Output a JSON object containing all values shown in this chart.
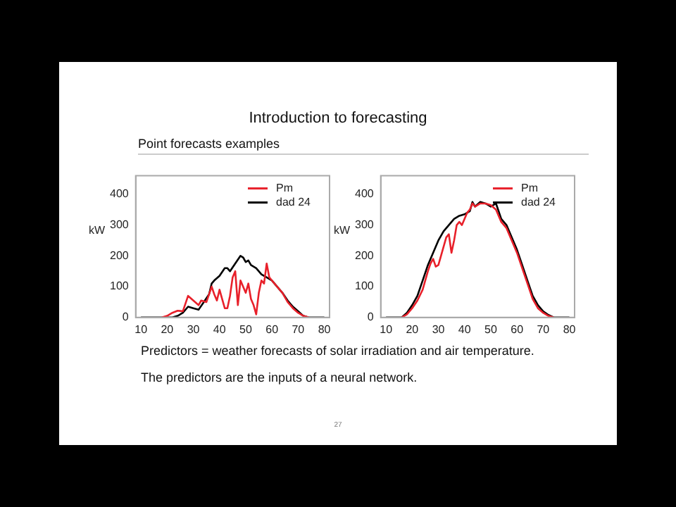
{
  "chart_data": [
    {
      "type": "line",
      "title": "Introduction to forecasting",
      "subtitle": "Point forecasts examples",
      "ylabel": "kW",
      "xlim": [
        8,
        82
      ],
      "xticks": [
        10,
        20,
        30,
        40,
        50,
        60,
        70,
        80
      ],
      "ylim": [
        0,
        460
      ],
      "yticks": [
        0,
        100,
        200,
        300,
        400
      ],
      "legend": "top right",
      "grid": false,
      "marker": "none",
      "line_style": "solid",
      "series": [
        {
          "name": "Pm",
          "color": "#e8202a",
          "x": [
            18,
            20,
            22,
            24,
            26,
            28,
            30,
            32,
            33,
            35,
            37,
            38,
            39,
            40,
            41,
            42,
            43,
            44,
            45,
            46,
            47,
            48,
            49,
            50,
            51,
            52,
            53,
            54,
            55,
            56,
            57,
            58,
            59,
            60,
            62,
            64,
            66,
            68,
            70,
            72,
            74
          ],
          "values": [
            0,
            5,
            15,
            22,
            20,
            70,
            55,
            40,
            55,
            50,
            100,
            75,
            55,
            90,
            60,
            30,
            30,
            70,
            130,
            150,
            40,
            120,
            100,
            80,
            110,
            60,
            40,
            10,
            80,
            120,
            110,
            175,
            130,
            120,
            100,
            80,
            50,
            30,
            15,
            5,
            0
          ]
        },
        {
          "name": "dad 24",
          "color": "#000000",
          "x": [
            10,
            22,
            24,
            26,
            28,
            30,
            32,
            34,
            36,
            37,
            38,
            40,
            42,
            43,
            44,
            46,
            48,
            49,
            50,
            51,
            52,
            54,
            56,
            58,
            60,
            62,
            64,
            66,
            68,
            70,
            72,
            74,
            80
          ],
          "values": [
            0,
            0,
            5,
            15,
            35,
            30,
            25,
            50,
            75,
            110,
            120,
            135,
            160,
            160,
            150,
            175,
            200,
            195,
            180,
            185,
            170,
            160,
            140,
            130,
            120,
            100,
            80,
            55,
            35,
            20,
            5,
            0,
            0
          ]
        }
      ]
    },
    {
      "type": "line",
      "ylabel": "kW",
      "xlim": [
        8,
        82
      ],
      "xticks": [
        10,
        20,
        30,
        40,
        50,
        60,
        70,
        80
      ],
      "ylim": [
        0,
        460
      ],
      "yticks": [
        0,
        100,
        200,
        300,
        400
      ],
      "legend": "top right",
      "grid": false,
      "marker": "none",
      "line_style": "solid",
      "annotations": [
        "Predictors = weather forecasts of solar irradiation and air temperature.",
        "The predictors are the inputs of a neural network.",
        "27"
      ],
      "series": [
        {
          "name": "Pm",
          "color": "#e8202a",
          "x": [
            16,
            18,
            20,
            22,
            24,
            26,
            27,
            28,
            29,
            30,
            31,
            33,
            34,
            35,
            36,
            37,
            38,
            39,
            40,
            41,
            42,
            43,
            44,
            45,
            46,
            48,
            50,
            52,
            54,
            56,
            58,
            60,
            62,
            64,
            66,
            68,
            70,
            72,
            74
          ],
          "values": [
            0,
            10,
            30,
            55,
            90,
            150,
            175,
            190,
            165,
            170,
            200,
            260,
            270,
            210,
            250,
            300,
            310,
            300,
            320,
            340,
            350,
            370,
            360,
            365,
            370,
            370,
            365,
            350,
            310,
            290,
            250,
            210,
            160,
            110,
            60,
            30,
            15,
            5,
            0
          ]
        },
        {
          "name": "dad 24",
          "color": "#000000",
          "x": [
            10,
            16,
            18,
            20,
            22,
            24,
            26,
            28,
            30,
            32,
            34,
            36,
            38,
            40,
            42,
            43,
            44,
            46,
            48,
            50,
            52,
            54,
            56,
            58,
            60,
            62,
            64,
            66,
            68,
            70,
            72,
            74,
            80
          ],
          "values": [
            0,
            0,
            15,
            40,
            70,
            120,
            170,
            210,
            250,
            280,
            300,
            320,
            330,
            335,
            345,
            375,
            360,
            375,
            370,
            360,
            370,
            320,
            300,
            260,
            220,
            170,
            120,
            70,
            40,
            20,
            8,
            0,
            0
          ]
        }
      ]
    }
  ]
}
